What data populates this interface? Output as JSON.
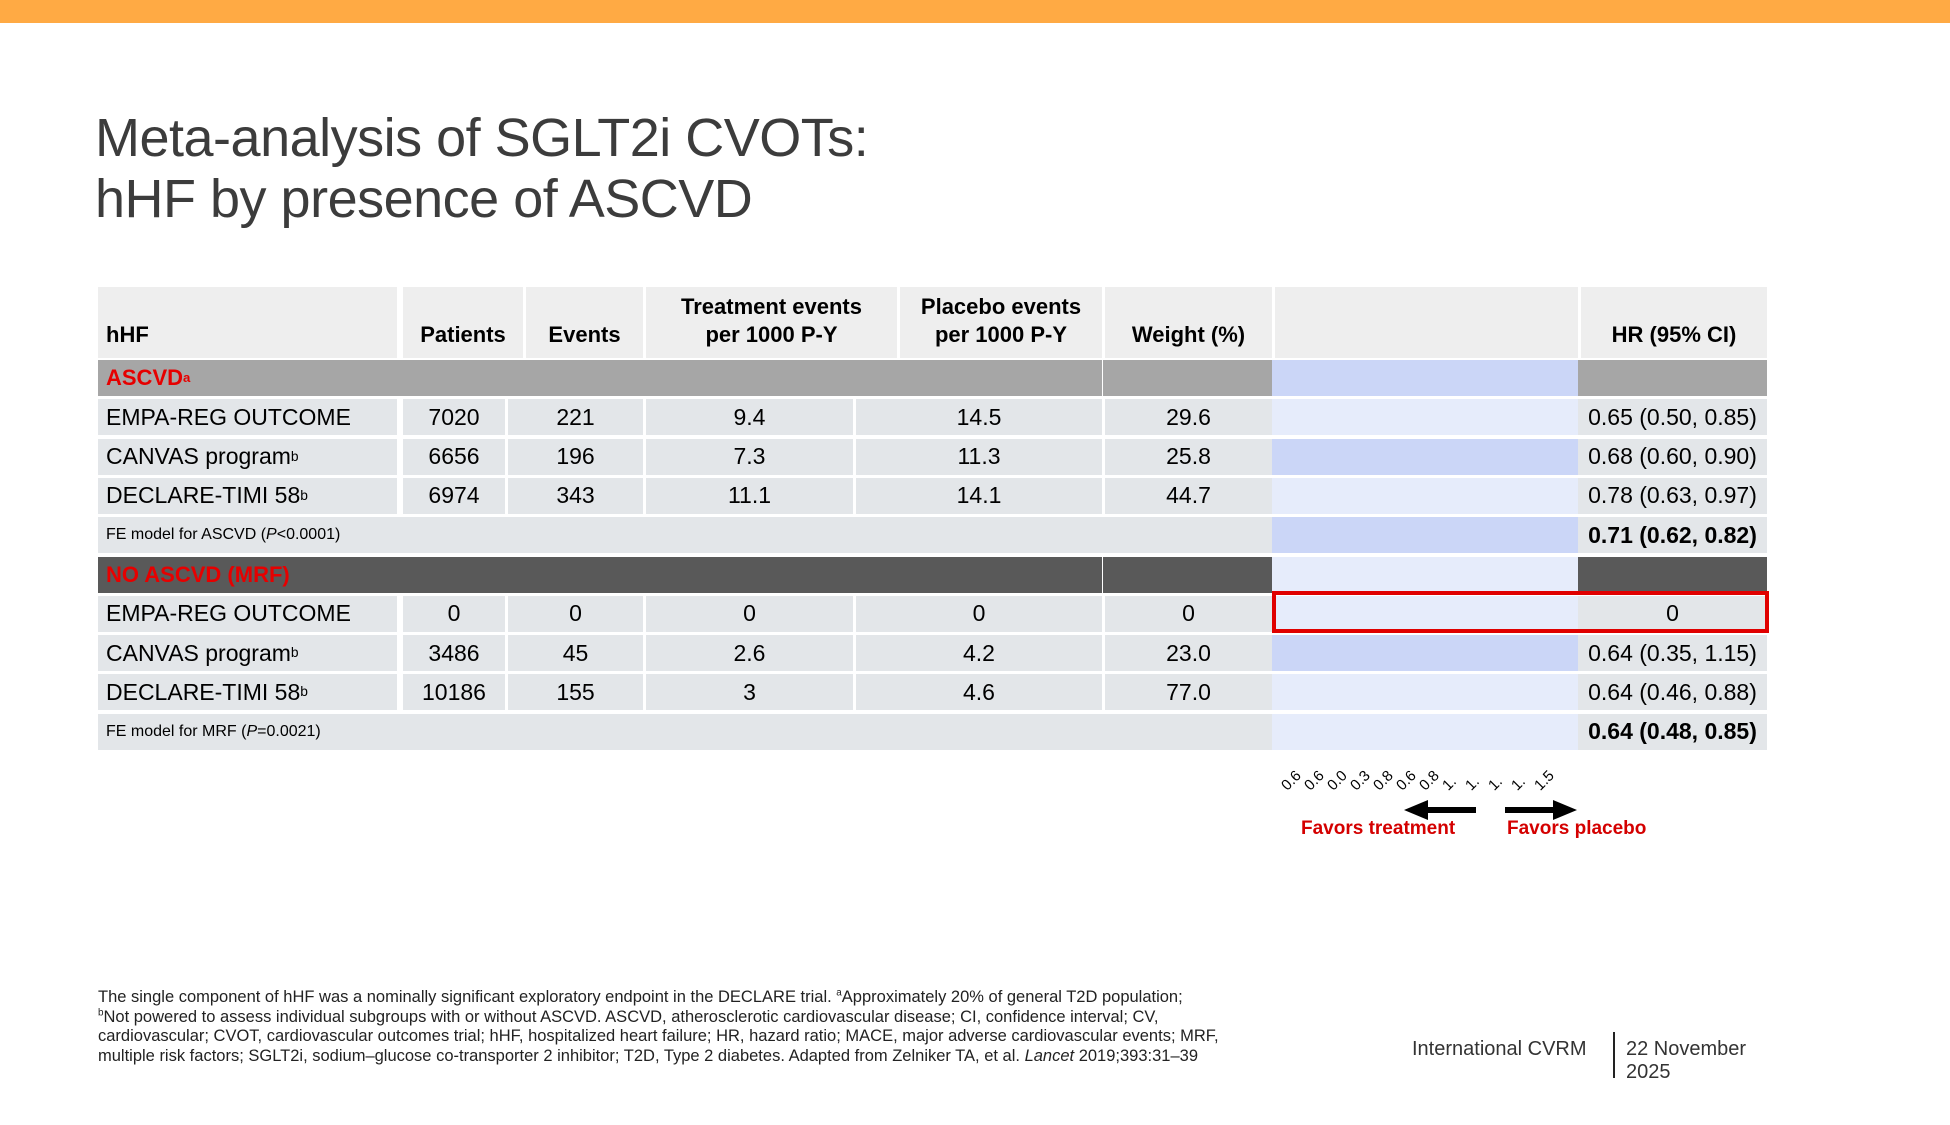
{
  "slide": {
    "title_line1": "Meta-analysis of SGLT2i CVOTs:",
    "title_line2": "hHF by presence of ASCVD",
    "accent_color": "#FFAA44"
  },
  "table": {
    "headers": {
      "study": "hHF",
      "patients": "Patients",
      "events": "Events",
      "treatment_l1": "Treatment events",
      "treatment_l2": "per 1000 P-Y",
      "placebo_l1": "Placebo events",
      "placebo_l2": "per 1000 P-Y",
      "weight": "Weight (%)",
      "plot": "",
      "hr": "HR (95% CI)"
    },
    "groups": [
      {
        "label": "ASCVD",
        "label_sup": "a",
        "rows": [
          {
            "study": "EMPA-REG OUTCOME",
            "sup": "",
            "patients": "7020",
            "events": "221",
            "treatment": "9.4",
            "placebo": "14.5",
            "weight": "29.6",
            "hr": "0.65 (0.50, 0.85)"
          },
          {
            "study": "CANVAS program",
            "sup": "b",
            "patients": "6656",
            "events": "196",
            "treatment": "7.3",
            "placebo": "11.3",
            "weight": "25.8",
            "hr": "0.68 (0.60, 0.90)"
          },
          {
            "study": "DECLARE-TIMI 58",
            "sup": "b",
            "patients": "6974",
            "events": "343",
            "treatment": "11.1",
            "placebo": "14.1",
            "weight": "44.7",
            "hr": "0.78 (0.63, 0.97)"
          }
        ],
        "fe_prefix": "FE model for ASCVD (",
        "fe_p": "P",
        "fe_suffix": "<0.0001)",
        "fe_hr": "0.71 (0.62, 0.82)"
      },
      {
        "label": "NO ASCVD (MRF)",
        "label_sup": "",
        "rows": [
          {
            "study": "EMPA-REG OUTCOME",
            "sup": "",
            "patients": "0",
            "events": "0",
            "treatment": "0",
            "placebo": "0",
            "weight": "0",
            "hr": "0"
          },
          {
            "study": "CANVAS program",
            "sup": "b",
            "patients": "3486",
            "events": "45",
            "treatment": "2.6",
            "placebo": "4.2",
            "weight": "23.0",
            "hr": "0.64 (0.35, 1.15)"
          },
          {
            "study": "DECLARE-TIMI 58",
            "sup": "b",
            "patients": "10186",
            "events": "155",
            "treatment": "3",
            "placebo": "4.6",
            "weight": "77.0",
            "hr": "0.64 (0.46, 0.88)"
          }
        ],
        "fe_prefix": "FE model for MRF (",
        "fe_p": "P",
        "fe_suffix": "=0.0021)",
        "fe_hr": "0.64 (0.48, 0.85)"
      }
    ]
  },
  "plot": {
    "axis_ticks": [
      "0.6",
      "0.6",
      "0.0",
      "0.3",
      "0.8",
      "0.6",
      "0.8",
      "1.",
      "1.",
      "1.",
      "1.",
      "1.5"
    ],
    "favors_left": "Favors treatment",
    "favors_right": "Favors placebo",
    "highlight_row": "NO ASCVD (MRF) / EMPA-REG OUTCOME"
  },
  "footnote": {
    "line1a": "The single component of hHF was a nominally significant exploratory endpoint in the DECLARE trial. ",
    "line1_sup": "a",
    "line1b": "Approximately 20% of general T2D population;",
    "line2_sup": "b",
    "line2": "Not powered to assess individual subgroups with or without ASCVD. ASCVD, atherosclerotic cardiovascular disease; CI, confidence interval; CV,",
    "line3": "cardiovascular; CVOT, cardiovascular outcomes trial; hHF, hospitalized heart failure; HR, hazard ratio; MACE, major adverse cardiovascular events; MRF,",
    "line4a": "multiple risk factors; SGLT2i, sodium–glucose co-transporter 2 inhibitor; T2D, Type 2 diabetes. Adapted from Zelniker TA, et al. ",
    "line4_journal": "Lancet",
    "line4b": " 2019;393:31–39"
  },
  "footer": {
    "organization": "International CVRM",
    "date_line1": "22 November",
    "date_line2": "2025"
  }
}
